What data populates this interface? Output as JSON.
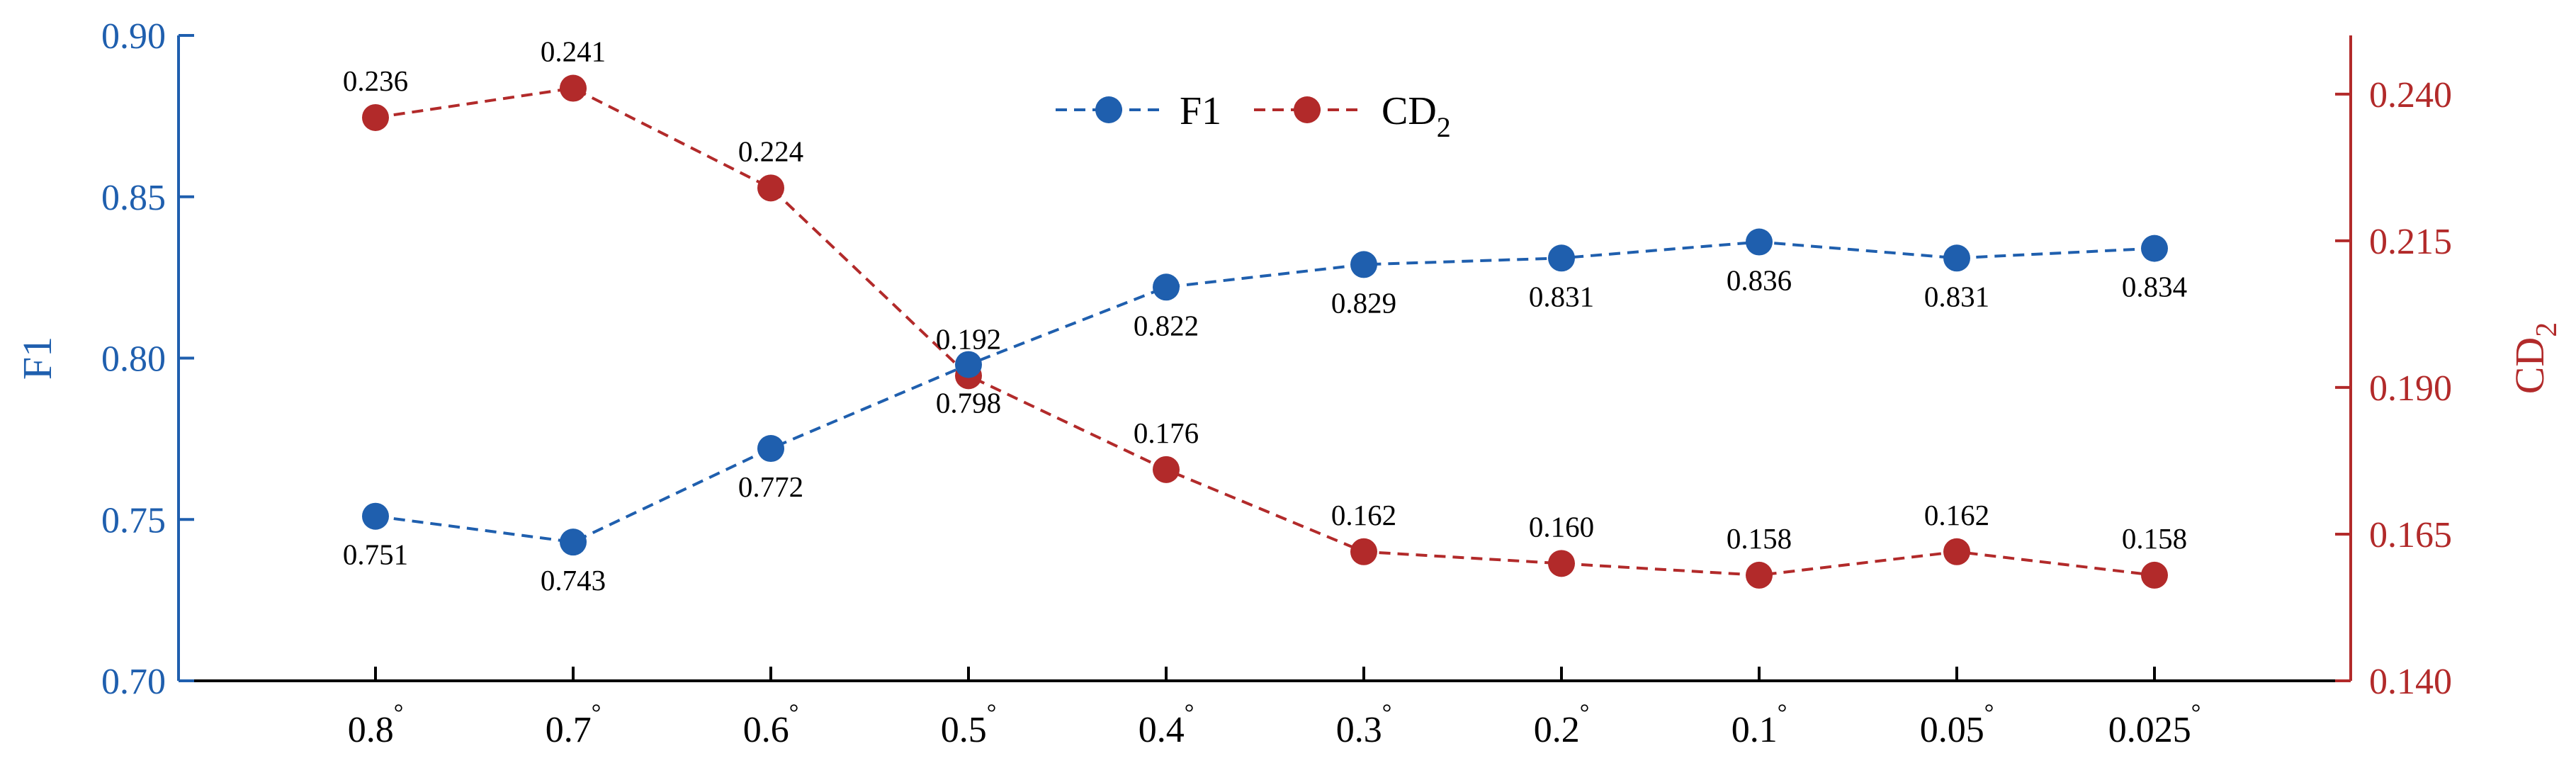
{
  "chart_data": {
    "type": "line",
    "categories": [
      "0.8°",
      "0.7°",
      "0.6°",
      "0.5°",
      "0.4°",
      "0.3°",
      "0.2°",
      "0.1°",
      "0.05°",
      "0.025°"
    ],
    "x_tick_labels": [
      {
        "base": "0.8",
        "sup": "°"
      },
      {
        "base": "0.7",
        "sup": "°"
      },
      {
        "base": "0.6",
        "sup": "°"
      },
      {
        "base": "0.5",
        "sup": "°"
      },
      {
        "base": "0.4",
        "sup": "°"
      },
      {
        "base": "0.3",
        "sup": "°"
      },
      {
        "base": "0.2",
        "sup": "°"
      },
      {
        "base": "0.1",
        "sup": "°"
      },
      {
        "base": "0.05",
        "sup": "°"
      },
      {
        "base": "0.025",
        "sup": "°"
      }
    ],
    "series": [
      {
        "name": "F1",
        "axis": "left",
        "color": "#1f5fae",
        "values": [
          0.751,
          0.743,
          0.772,
          0.798,
          0.822,
          0.829,
          0.831,
          0.836,
          0.831,
          0.834
        ],
        "labels": [
          "0.751",
          "0.743",
          "0.772",
          "0.798",
          "0.822",
          "0.829",
          "0.831",
          "0.836",
          "0.831",
          "0.834"
        ]
      },
      {
        "name": "CD2",
        "legend_base": "CD",
        "legend_sub": "2",
        "axis": "right",
        "color": "#b22a2a",
        "values": [
          0.236,
          0.241,
          0.224,
          0.192,
          0.176,
          0.162,
          0.16,
          0.158,
          0.162,
          0.158
        ],
        "labels": [
          "0.236",
          "0.241",
          "0.224",
          "0.192",
          "0.176",
          "0.162",
          "0.160",
          "0.158",
          "0.162",
          "0.158"
        ]
      }
    ],
    "left_axis": {
      "title": "F1",
      "ylim": [
        0.7,
        0.9
      ],
      "ticks": [
        0.7,
        0.75,
        0.8,
        0.85,
        0.9
      ],
      "tick_labels": [
        "0.70",
        "0.75",
        "0.80",
        "0.85",
        "0.90"
      ],
      "color": "#1f5fae"
    },
    "right_axis": {
      "title_base": "CD",
      "title_sub": "2",
      "ylim": [
        0.14,
        0.25
      ],
      "ticks": [
        0.14,
        0.165,
        0.19,
        0.215,
        0.24
      ],
      "tick_labels": [
        "0.140",
        "0.165",
        "0.190",
        "0.215",
        "0.240"
      ],
      "color": "#b22a2a"
    },
    "grid": false,
    "legend_position": "top-center",
    "line_style": "dashed",
    "marker": "circle"
  }
}
